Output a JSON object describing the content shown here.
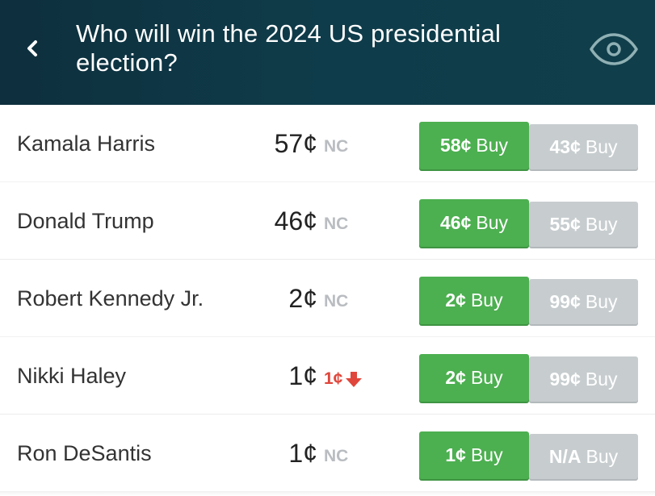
{
  "header": {
    "title": "Who will win the 2024 US presidential election?",
    "back_icon": "chevron-left-icon",
    "watch_icon": "eye-icon"
  },
  "colors": {
    "header_bg": "#0f3a48",
    "buy_yes": "#4caf50",
    "buy_no": "#c7cdcf",
    "no_change": "#b9bcc0",
    "price_down": "#e0463b"
  },
  "contracts": [
    {
      "name": "Kamala Harris",
      "price": "57¢",
      "change": "NC",
      "change_dir": "none",
      "yes_price": "58¢",
      "yes_label": "Buy",
      "no_price": "43¢",
      "no_label": "Buy"
    },
    {
      "name": "Donald Trump",
      "price": "46¢",
      "change": "NC",
      "change_dir": "none",
      "yes_price": "46¢",
      "yes_label": "Buy",
      "no_price": "55¢",
      "no_label": "Buy"
    },
    {
      "name": "Robert Kennedy Jr.",
      "price": "2¢",
      "change": "NC",
      "change_dir": "none",
      "yes_price": "2¢",
      "yes_label": "Buy",
      "no_price": "99¢",
      "no_label": "Buy"
    },
    {
      "name": "Nikki Haley",
      "price": "1¢",
      "change": "1¢",
      "change_dir": "down",
      "yes_price": "2¢",
      "yes_label": "Buy",
      "no_price": "99¢",
      "no_label": "Buy"
    },
    {
      "name": "Ron DeSantis",
      "price": "1¢",
      "change": "NC",
      "change_dir": "none",
      "yes_price": "1¢",
      "yes_label": "Buy",
      "no_price": "N/A",
      "no_label": "Buy"
    }
  ]
}
